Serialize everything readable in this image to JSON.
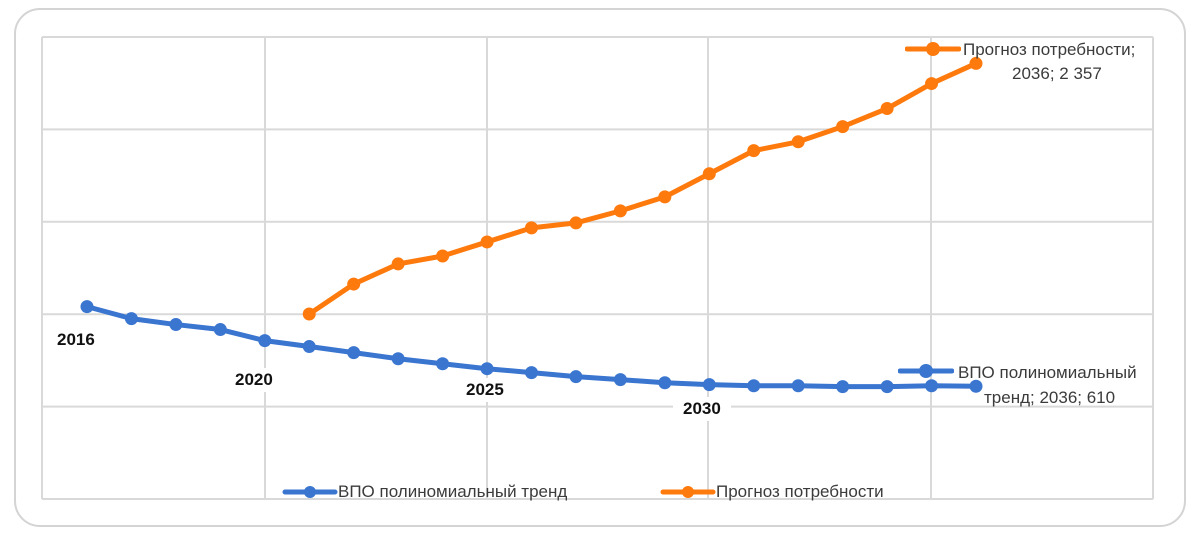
{
  "chart_data": {
    "type": "line",
    "title": "",
    "xlabel": "",
    "ylabel": "",
    "x": [
      2016,
      2017,
      2018,
      2019,
      2020,
      2021,
      2022,
      2023,
      2024,
      2025,
      2026,
      2027,
      2028,
      2029,
      2030,
      2031,
      2032,
      2033,
      2034,
      2035,
      2036
    ],
    "x_tick_labels": [
      "2016",
      "2020",
      "2025",
      "2030"
    ],
    "ylim": [
      0,
      2500
    ],
    "y_gridlines": [
      0,
      500,
      1000,
      1500,
      2000,
      2500
    ],
    "y_tick_labels_visible": false,
    "grid": true,
    "legend_position": "bottom",
    "series": [
      {
        "name": "ВПО полиномиальный тренд",
        "color": "#3a75d0",
        "x": [
          2016,
          2017,
          2018,
          2019,
          2020,
          2021,
          2022,
          2023,
          2024,
          2025,
          2026,
          2027,
          2028,
          2029,
          2030,
          2031,
          2032,
          2033,
          2034,
          2035,
          2036
        ],
        "values": [
          1041,
          976,
          944,
          917,
          857,
          825,
          792,
          759,
          732,
          705,
          684,
          662,
          646,
          629,
          619,
          613,
          613,
          608,
          608,
          613,
          610
        ]
      },
      {
        "name": "Прогноз потребности",
        "color": "#ff7a0d",
        "x": [
          2021,
          2022,
          2023,
          2024,
          2025,
          2026,
          2027,
          2028,
          2029,
          2030,
          2031,
          2032,
          2033,
          2034,
          2035,
          2036
        ],
        "values": [
          1001,
          1163,
          1272,
          1315,
          1391,
          1467,
          1494,
          1559,
          1635,
          1760,
          1885,
          1933,
          2015,
          2113,
          2248,
          2357
        ]
      }
    ],
    "annotations": [
      {
        "series": "Прогноз потребности",
        "x": 2036,
        "text_line1": "Прогноз потребности;",
        "text_line2": "2036;  2 357"
      },
      {
        "series": "ВПО полиномиальный тренд",
        "x": 2036,
        "text_line1": "ВПО полиномиальный",
        "text_line2": "тренд; 2036;   610"
      }
    ]
  },
  "labels": {
    "years": [
      "2016",
      "2020",
      "2025",
      "2030"
    ],
    "orange_annotation_line1": "Прогноз потребности;",
    "orange_annotation_line2": "2036;  2 357",
    "blue_annotation_line1": "ВПО полиномиальный",
    "blue_annotation_line2": "тренд; 2036;   610"
  },
  "legend": {
    "items": [
      {
        "label": "ВПО полиномиальный тренд",
        "color": "#3a75d0"
      },
      {
        "label": "Прогноз потребности",
        "color": "#ff7a0d"
      }
    ]
  }
}
